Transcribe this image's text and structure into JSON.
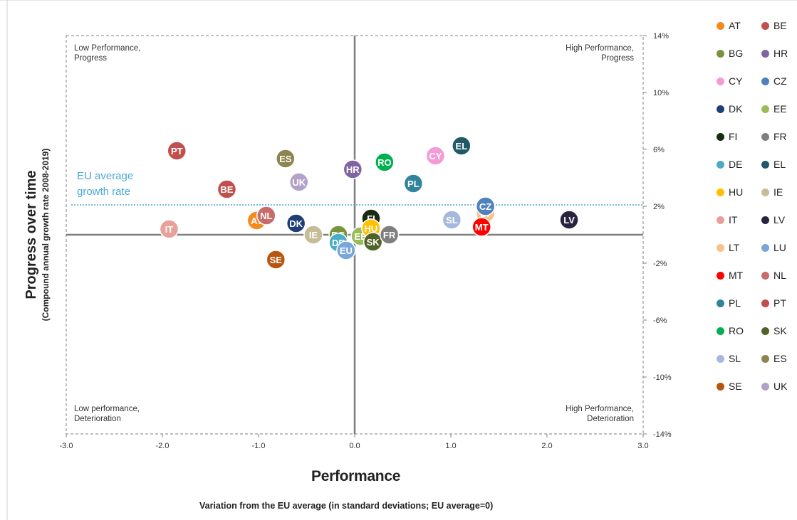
{
  "chart_data": {
    "type": "scatter",
    "xlabel": "Performance",
    "xlabel_sub": "Variation from the EU average (in standard deviations; EU average=0)",
    "ylabel": "Progress over time",
    "ylabel_sub": "(Compound annual growth rate 2008-2019)",
    "xlim": [
      -3.0,
      3.0
    ],
    "ylim": [
      -14,
      14
    ],
    "x_ticks": [
      "-3.0",
      "-2.0",
      "-1.0",
      "0.0",
      "1.0",
      "2.0",
      "3.0"
    ],
    "y_ticks": [
      "14%",
      "10%",
      "6%",
      "2%",
      "-2%",
      "-6%",
      "-10%",
      "-14%"
    ],
    "reference_line": {
      "label": "EU average growth rate",
      "y": 2.1,
      "color": "#4aa8d8"
    },
    "quadrants": {
      "top_left": "Low Performance, Progress",
      "top_right": "High Performance, Progress",
      "bottom_left": "Low performance, Deterioration",
      "bottom_right": "High Performance, Deterioration"
    },
    "points": [
      {
        "code": "PT",
        "x": -1.85,
        "y": 5.9,
        "color": "#c0504d"
      },
      {
        "code": "BE",
        "x": -1.33,
        "y": 3.2,
        "color": "#c0504d"
      },
      {
        "code": "IT",
        "x": -1.93,
        "y": 0.4,
        "color": "#e8a09a"
      },
      {
        "code": "AT",
        "x": -1.02,
        "y": 1.0,
        "color": "#f58a1f"
      },
      {
        "code": "NL",
        "x": -0.92,
        "y": 1.35,
        "color": "#c86b6b"
      },
      {
        "code": "ES",
        "x": -0.72,
        "y": 5.35,
        "color": "#8c8550"
      },
      {
        "code": "UK",
        "x": -0.58,
        "y": 3.7,
        "color": "#b3a2c7"
      },
      {
        "code": "DK",
        "x": -0.61,
        "y": 0.8,
        "color": "#1f3f77"
      },
      {
        "code": "SE",
        "x": -0.82,
        "y": -1.75,
        "color": "#b8550f"
      },
      {
        "code": "IE",
        "x": -0.43,
        "y": 0.0,
        "color": "#c4bd97"
      },
      {
        "code": "BG",
        "x": -0.17,
        "y": 0.0,
        "color": "#77933c"
      },
      {
        "code": "DE",
        "x": -0.17,
        "y": -0.55,
        "color": "#4bacc6"
      },
      {
        "code": "EU",
        "x": -0.09,
        "y": -1.1,
        "color": "#7aa6d8"
      },
      {
        "code": "HR",
        "x": -0.02,
        "y": 4.6,
        "color": "#8064a2"
      },
      {
        "code": "EE",
        "x": 0.06,
        "y": -0.1,
        "color": "#9bbb59"
      },
      {
        "code": "FI",
        "x": 0.17,
        "y": 1.15,
        "color": "#1a2a10"
      },
      {
        "code": "HU",
        "x": 0.17,
        "y": 0.45,
        "color": "#ffc000"
      },
      {
        "code": "SK",
        "x": 0.19,
        "y": -0.5,
        "color": "#4f6228"
      },
      {
        "code": "FR",
        "x": 0.36,
        "y": 0.0,
        "color": "#7f7f7f"
      },
      {
        "code": "RO",
        "x": 0.31,
        "y": 5.1,
        "color": "#00b050"
      },
      {
        "code": "PL",
        "x": 0.61,
        "y": 3.6,
        "color": "#31849b"
      },
      {
        "code": "CY",
        "x": 0.84,
        "y": 5.55,
        "color": "#f49ad7"
      },
      {
        "code": "EL",
        "x": 1.11,
        "y": 6.25,
        "color": "#215a66"
      },
      {
        "code": "SL",
        "x": 1.01,
        "y": 1.05,
        "color": "#a6b8dc"
      },
      {
        "code": "LT",
        "x": 1.36,
        "y": 1.5,
        "color": "#f9c08a"
      },
      {
        "code": "CZ",
        "x": 1.36,
        "y": 2.0,
        "color": "#4f81bd"
      },
      {
        "code": "MT",
        "x": 1.32,
        "y": 0.55,
        "color": "#ff0000"
      },
      {
        "code": "LV",
        "x": 2.23,
        "y": 1.05,
        "color": "#2a2340"
      }
    ],
    "legend": [
      {
        "code": "AT",
        "color": "#f58a1f"
      },
      {
        "code": "BE",
        "color": "#c0504d"
      },
      {
        "code": "BG",
        "color": "#77933c"
      },
      {
        "code": "HR",
        "color": "#8064a2"
      },
      {
        "code": "CY",
        "color": "#f49ad7"
      },
      {
        "code": "CZ",
        "color": "#4f81bd"
      },
      {
        "code": "DK",
        "color": "#1f3f77"
      },
      {
        "code": "EE",
        "color": "#9bbb59"
      },
      {
        "code": "FI",
        "color": "#1a2a10"
      },
      {
        "code": "FR",
        "color": "#7f7f7f"
      },
      {
        "code": "DE",
        "color": "#4bacc6"
      },
      {
        "code": "EL",
        "color": "#215a66"
      },
      {
        "code": "HU",
        "color": "#ffc000"
      },
      {
        "code": "IE",
        "color": "#c4bd97"
      },
      {
        "code": "IT",
        "color": "#e8a09a"
      },
      {
        "code": "LV",
        "color": "#2a2340"
      },
      {
        "code": "LT",
        "color": "#f9c08a"
      },
      {
        "code": "LU",
        "color": "#7aa6d8"
      },
      {
        "code": "MT",
        "color": "#ff0000"
      },
      {
        "code": "NL",
        "color": "#c86b6b"
      },
      {
        "code": "PL",
        "color": "#31849b"
      },
      {
        "code": "PT",
        "color": "#c0504d"
      },
      {
        "code": "RO",
        "color": "#00b050"
      },
      {
        "code": "SK",
        "color": "#4f6228"
      },
      {
        "code": "SL",
        "color": "#a6b8dc"
      },
      {
        "code": "ES",
        "color": "#8c8550"
      },
      {
        "code": "SE",
        "color": "#b8550f"
      },
      {
        "code": "UK",
        "color": "#b3a2c7"
      }
    ]
  }
}
